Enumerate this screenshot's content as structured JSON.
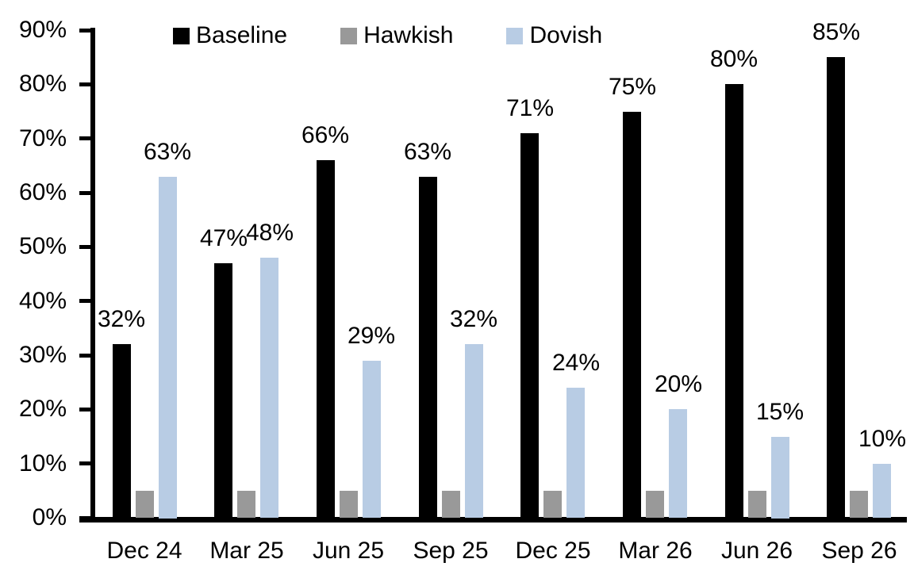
{
  "chart_data": {
    "type": "bar",
    "title": "",
    "categories": [
      "Dec 24",
      "Mar 25",
      "Jun 25",
      "Sep 25",
      "Dec 25",
      "Mar 26",
      "Jun 26",
      "Sep 26"
    ],
    "series": [
      {
        "name": "Baseline",
        "color": "#000000",
        "values": [
          32,
          47,
          66,
          63,
          71,
          75,
          80,
          85
        ],
        "data_labels": true
      },
      {
        "name": "Hawkish",
        "color": "#999999",
        "values": [
          5,
          5,
          5,
          5,
          5,
          5,
          5,
          5
        ],
        "data_labels": false
      },
      {
        "name": "Dovish",
        "color": "#B8CCE4",
        "values": [
          63,
          48,
          29,
          32,
          24,
          20,
          15,
          10
        ],
        "data_labels": true
      }
    ],
    "label_format": "{v}%",
    "yticks": [
      "0%",
      "10%",
      "20%",
      "30%",
      "40%",
      "50%",
      "60%",
      "70%",
      "80%",
      "90%"
    ],
    "ylim": [
      0,
      90
    ],
    "grid": false,
    "legend_position": "top",
    "axis_color": "#000000",
    "text_color": "#000000"
  }
}
